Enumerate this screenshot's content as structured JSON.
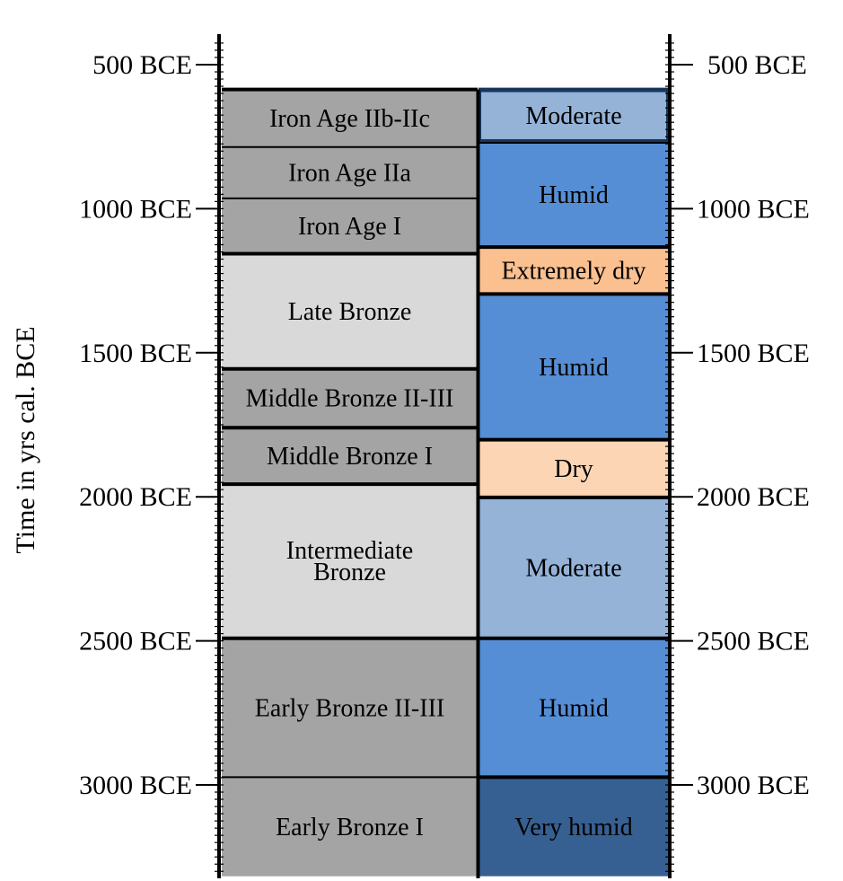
{
  "axis_label": "Time in yrs  cal. BCE",
  "y_ticks": [
    {
      "year": 500,
      "label": "500 BCE"
    },
    {
      "year": 1000,
      "label": "1000 BCE"
    },
    {
      "year": 1500,
      "label": "1500 BCE"
    },
    {
      "year": 2000,
      "label": "2000 BCE"
    },
    {
      "year": 2500,
      "label": "2500 BCE"
    },
    {
      "year": 3000,
      "label": "3000 BCE"
    }
  ],
  "periods": [
    {
      "label": "Iron Age IIb-IIc",
      "start": 586,
      "end": 786,
      "color": "#a4a4a4"
    },
    {
      "label": "Iron Age IIa",
      "start": 786,
      "end": 964,
      "color": "#a4a4a4"
    },
    {
      "label": "Iron Age I",
      "start": 964,
      "end": 1156,
      "color": "#a4a4a4"
    },
    {
      "label": "Late Bronze",
      "start": 1156,
      "end": 1556,
      "color": "#d9d9d9"
    },
    {
      "label": "Middle Bronze II-III",
      "start": 1556,
      "end": 1760,
      "color": "#a4a4a4"
    },
    {
      "label": "Middle Bronze I",
      "start": 1760,
      "end": 1956,
      "color": "#a4a4a4"
    },
    {
      "label": "Intermediate\nBronze",
      "start": 1956,
      "end": 2491,
      "color": "#d9d9d9"
    },
    {
      "label": "Early  Bronze II-III",
      "start": 2491,
      "end": 2973,
      "color": "#a4a4a4"
    },
    {
      "label": "Early  Bronze I",
      "start": 2973,
      "end": 3317,
      "color": "#a4a4a4"
    }
  ],
  "climate": [
    {
      "label": "Moderate",
      "start": 586,
      "end": 768,
      "color": "#95b3d7"
    },
    {
      "label": "Humid",
      "start": 768,
      "end": 1133,
      "color": "#558ed5"
    },
    {
      "label": "Extremely dry",
      "start": 1133,
      "end": 1296,
      "color": "#fac090"
    },
    {
      "label": "Humid",
      "start": 1296,
      "end": 1802,
      "color": "#558ed5"
    },
    {
      "label": "Dry",
      "start": 1802,
      "end": 2002,
      "color": "#fcd5b5"
    },
    {
      "label": "Moderate",
      "start": 2002,
      "end": 2491,
      "color": "#95b3d7"
    },
    {
      "label": "Humid",
      "start": 2491,
      "end": 2973,
      "color": "#558ed5"
    },
    {
      "label": "Very humid",
      "start": 2973,
      "end": 3317,
      "color": "#376092"
    }
  ]
}
